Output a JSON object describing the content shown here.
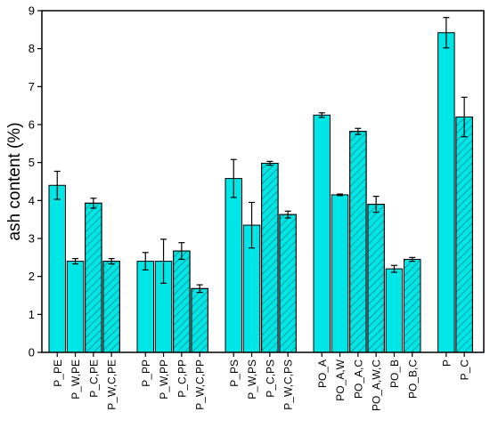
{
  "chart_data": {
    "type": "bar",
    "title": "",
    "xlabel": "",
    "ylabel": "ash content (%)",
    "ylim": [
      0,
      9
    ],
    "yticks": [
      0,
      1,
      2,
      3,
      4,
      5,
      6,
      7,
      8,
      9
    ],
    "grid": false,
    "legend": "none",
    "bar_color": "#00e5e5",
    "groups": [
      {
        "bars": [
          {
            "label": "P_PE",
            "value": 4.4,
            "error": 0.37,
            "hatched": false
          },
          {
            "label": "P_W,PE",
            "value": 2.4,
            "error": 0.07,
            "hatched": false
          },
          {
            "label": "P_C,PE",
            "value": 3.93,
            "error": 0.13,
            "hatched": true
          },
          {
            "label": "P_W,C,PE",
            "value": 2.4,
            "error": 0.07,
            "hatched": true
          }
        ]
      },
      {
        "bars": [
          {
            "label": "P_PP",
            "value": 2.4,
            "error": 0.23,
            "hatched": false
          },
          {
            "label": "P_W,PP",
            "value": 2.4,
            "error": 0.58,
            "hatched": false
          },
          {
            "label": "P_C,PP",
            "value": 2.67,
            "error": 0.22,
            "hatched": true
          },
          {
            "label": "P_W,C,PP",
            "value": 1.68,
            "error": 0.1,
            "hatched": true
          }
        ]
      },
      {
        "bars": [
          {
            "label": "P_PS",
            "value": 4.58,
            "error": 0.5,
            "hatched": false
          },
          {
            "label": "P_W,PS",
            "value": 3.35,
            "error": 0.6,
            "hatched": false
          },
          {
            "label": "P_C,PS",
            "value": 4.98,
            "error": 0.05,
            "hatched": true
          },
          {
            "label": "P_W,C,PS",
            "value": 3.63,
            "error": 0.09,
            "hatched": true
          }
        ]
      },
      {
        "bars": [
          {
            "label": "PO_A",
            "value": 6.25,
            "error": 0.06,
            "hatched": false
          },
          {
            "label": "PO_A,W",
            "value": 4.15,
            "error": 0.02,
            "hatched": false
          },
          {
            "label": "PO_A,C",
            "value": 5.82,
            "error": 0.08,
            "hatched": true
          },
          {
            "label": "PO_A,W,C",
            "value": 3.9,
            "error": 0.21,
            "hatched": true
          },
          {
            "label": "PO_B",
            "value": 2.2,
            "error": 0.09,
            "hatched": false
          },
          {
            "label": "PO_B,C",
            "value": 2.45,
            "error": 0.05,
            "hatched": true
          }
        ]
      },
      {
        "bars": [
          {
            "label": "P",
            "value": 8.42,
            "error": 0.4,
            "hatched": false
          },
          {
            "label": "P_C",
            "value": 6.2,
            "error": 0.52,
            "hatched": true
          }
        ]
      }
    ]
  }
}
